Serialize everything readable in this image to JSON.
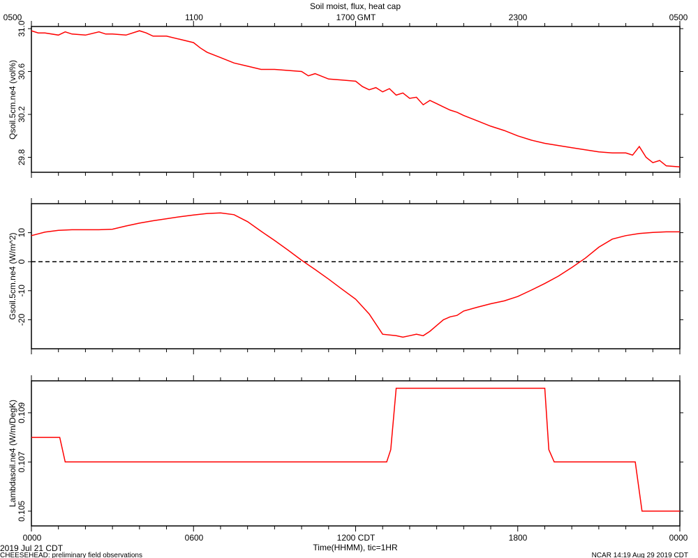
{
  "title": "Soil moist, flux, heat cap",
  "top_axis": {
    "labels": [
      "0500",
      "1100",
      "1700 GMT",
      "2300",
      "0500"
    ]
  },
  "bottom_axis": {
    "labels": [
      "0000",
      "0600",
      "1200 CDT",
      "1800",
      "0000"
    ],
    "title": "Time(HHMM), tic=1HR"
  },
  "footer": {
    "date": "2019 Jul 21 CDT",
    "project": "CHEESEHEAD: preliminary field observations",
    "stamp": "NCAR 14:19 Aug 29 2019 CDT"
  },
  "colors": {
    "series": "#ff0000",
    "axes": "#000000",
    "background": "#ffffff"
  },
  "chart_data": [
    {
      "type": "line",
      "ylabel": "Qsoil.5cm.ne4 (vol%)",
      "yticks": [
        "31.0",
        "30.6",
        "30.2",
        "29.8"
      ],
      "ylim": [
        29.66,
        31.02
      ],
      "xlim": [
        0,
        24
      ],
      "grid": false,
      "series": [
        {
          "x": [
            0,
            0.25,
            0.5,
            1,
            1.25,
            1.5,
            2,
            2.5,
            2.75,
            3,
            3.5,
            4,
            4.25,
            4.5,
            5,
            5.5,
            6,
            6.25,
            6.5,
            7,
            7.5,
            8,
            8.5,
            9,
            9.5,
            10,
            10.25,
            10.5,
            11,
            11.5,
            12,
            12.25,
            12.5,
            12.75,
            13,
            13.25,
            13.5,
            13.75,
            14,
            14.25,
            14.5,
            14.75,
            15,
            15.25,
            15.5,
            15.75,
            16,
            16.5,
            17,
            17.5,
            18,
            18.5,
            19,
            19.5,
            20,
            20.5,
            21,
            21.5,
            22,
            22.25,
            22.5,
            22.75,
            23,
            23.25,
            23.5,
            24
          ],
          "y": [
            30.98,
            30.96,
            30.96,
            30.94,
            30.97,
            30.95,
            30.94,
            30.97,
            30.95,
            30.95,
            30.94,
            30.98,
            30.96,
            30.93,
            30.93,
            30.9,
            30.87,
            30.82,
            30.78,
            30.73,
            30.68,
            30.65,
            30.62,
            30.62,
            30.61,
            30.6,
            30.56,
            30.58,
            30.53,
            30.52,
            30.51,
            30.46,
            30.43,
            30.45,
            30.41,
            30.44,
            30.38,
            30.4,
            30.35,
            30.36,
            30.29,
            30.33,
            30.3,
            30.27,
            30.24,
            30.22,
            30.19,
            30.14,
            30.09,
            30.05,
            30.0,
            29.96,
            29.93,
            29.91,
            29.89,
            29.87,
            29.85,
            29.84,
            29.84,
            29.82,
            29.9,
            29.8,
            29.75,
            29.77,
            29.72,
            29.71
          ]
        }
      ]
    },
    {
      "type": "line",
      "ylabel": "Gsoil.5cm.ne4 (W/m^2)",
      "yticks": [
        "10",
        "0",
        "-10",
        "-20"
      ],
      "ylim": [
        -30,
        20
      ],
      "xlim": [
        0,
        24
      ],
      "reference_line": 0,
      "grid": false,
      "series": [
        {
          "x": [
            0,
            0.5,
            1,
            1.5,
            2,
            2.5,
            3,
            3.5,
            4,
            4.5,
            5,
            5.5,
            6,
            6.5,
            7,
            7.5,
            8,
            8.5,
            9,
            9.5,
            10,
            10.5,
            11,
            11.5,
            12,
            12.5,
            13,
            13.5,
            13.75,
            14,
            14.25,
            14.5,
            14.75,
            15,
            15.25,
            15.5,
            15.75,
            16,
            16.5,
            17,
            17.5,
            18,
            18.5,
            19,
            19.5,
            20,
            20.5,
            21,
            21.5,
            22,
            22.5,
            23,
            23.5,
            24
          ],
          "y": [
            9,
            10.2,
            10.8,
            11,
            11,
            11,
            11.2,
            12.3,
            13.3,
            14.1,
            14.8,
            15.5,
            16.1,
            16.6,
            16.8,
            16.2,
            13.8,
            10.5,
            7.3,
            4,
            0.5,
            -2.7,
            -6,
            -9.5,
            -12.9,
            -18,
            -25,
            -25.5,
            -26,
            -25.5,
            -25,
            -25.5,
            -24,
            -22,
            -20,
            -19,
            -18.5,
            -17,
            -15.7,
            -14.5,
            -13.5,
            -12,
            -9.8,
            -7.5,
            -5,
            -2,
            1.2,
            5,
            7.8,
            9,
            9.7,
            10.1,
            10.3,
            10.3
          ]
        }
      ]
    },
    {
      "type": "line",
      "ylabel": "Lambdasoil.ne4 (W/m/DegK)",
      "yticks": [
        "0.109",
        "0.107",
        "0.105"
      ],
      "ylim": [
        0.1044,
        0.1103
      ],
      "xlim": [
        0,
        24
      ],
      "grid": false,
      "series": [
        {
          "x": [
            0,
            1.05,
            1.25,
            13.15,
            13.3,
            13.5,
            19.0,
            19.15,
            19.35,
            22.35,
            22.6,
            24
          ],
          "y": [
            0.108,
            0.108,
            0.107,
            0.107,
            0.1075,
            0.11,
            0.11,
            0.1075,
            0.107,
            0.107,
            0.105,
            0.105
          ]
        }
      ]
    }
  ]
}
